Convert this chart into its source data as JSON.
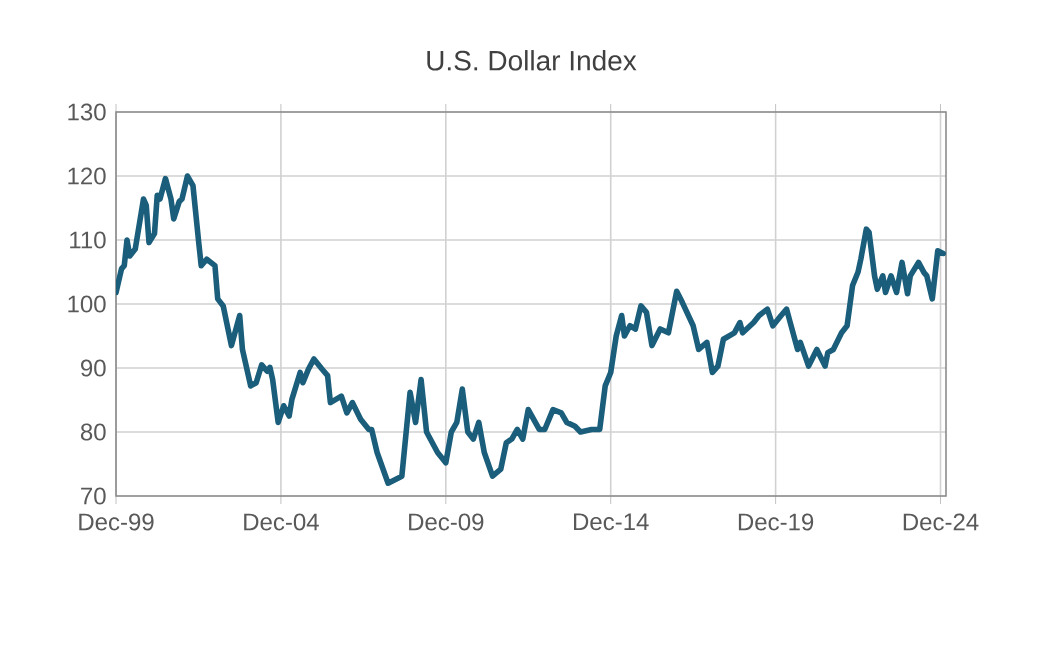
{
  "chart_data": {
    "type": "line",
    "title": "U.S. Dollar Index",
    "x": [
      "1999-12",
      "2000-02",
      "2000-03",
      "2000-04",
      "2000-05",
      "2000-07",
      "2000-09",
      "2000-10",
      "2000-11",
      "2000-12",
      "2001-02",
      "2001-03",
      "2001-04",
      "2001-06",
      "2001-08",
      "2001-09",
      "2001-11",
      "2001-12",
      "2002-02",
      "2002-04",
      "2002-06",
      "2002-07",
      "2002-09",
      "2002-12",
      "2003-01",
      "2003-03",
      "2003-06",
      "2003-09",
      "2003-10",
      "2004-01",
      "2004-03",
      "2004-05",
      "2004-07",
      "2004-08",
      "2004-09",
      "2004-11",
      "2005-01",
      "2005-03",
      "2005-04",
      "2005-07",
      "2005-08",
      "2005-10",
      "2005-12",
      "2006-03",
      "2006-05",
      "2006-06",
      "2006-10",
      "2006-12",
      "2007-02",
      "2007-05",
      "2007-08",
      "2007-09",
      "2007-11",
      "2008-03",
      "2008-08",
      "2008-11",
      "2009-01",
      "2009-03",
      "2009-05",
      "2009-09",
      "2009-12",
      "2010-02",
      "2010-04",
      "2010-06",
      "2010-08",
      "2010-10",
      "2010-12",
      "2011-02",
      "2011-05",
      "2011-08",
      "2011-10",
      "2011-12",
      "2012-02",
      "2012-04",
      "2012-06",
      "2012-10",
      "2012-12",
      "2013-03",
      "2013-06",
      "2013-08",
      "2013-11",
      "2014-01",
      "2014-05",
      "2014-08",
      "2014-10",
      "2014-12",
      "2015-02",
      "2015-04",
      "2015-05",
      "2015-07",
      "2015-09",
      "2015-11",
      "2016-01",
      "2016-03",
      "2016-06",
      "2016-09",
      "2016-12",
      "2017-02",
      "2017-06",
      "2017-08",
      "2017-11",
      "2018-01",
      "2018-03",
      "2018-05",
      "2018-09",
      "2018-11",
      "2018-12",
      "2019-04",
      "2019-06",
      "2019-09",
      "2019-11",
      "2020-02",
      "2020-04",
      "2020-05",
      "2020-08",
      "2020-09",
      "2020-12",
      "2021-03",
      "2021-06",
      "2021-07",
      "2021-09",
      "2021-12",
      "2022-02",
      "2022-04",
      "2022-06",
      "2022-07",
      "2022-09",
      "2022-10",
      "2022-12",
      "2023-01",
      "2023-03",
      "2023-04",
      "2023-06",
      "2023-08",
      "2023-10",
      "2023-12",
      "2024-01",
      "2024-04",
      "2024-06",
      "2024-07",
      "2024-09",
      "2024-11",
      "2025-01"
    ],
    "series": [
      {
        "color": "#1b5e7b",
        "values": [
          101.8,
          105.5,
          106,
          110,
          107.5,
          108.6,
          113.8,
          116.4,
          115.4,
          109.6,
          111,
          117,
          116.4,
          119.6,
          116.4,
          113.3,
          116,
          116.4,
          120,
          118.5,
          110,
          106,
          107,
          106,
          100.8,
          99.7,
          93.5,
          98.2,
          92.9,
          87.2,
          87.7,
          90.5,
          89.5,
          90.1,
          88.2,
          81.5,
          84.1,
          82.5,
          85.1,
          89.3,
          87.7,
          89.8,
          91.4,
          89.8,
          88.8,
          84.6,
          85.6,
          83,
          84.6,
          82,
          80.4,
          80.4,
          76.8,
          72,
          73.1,
          86.2,
          81.5,
          88.2,
          80,
          76.8,
          75.2,
          80,
          81.5,
          86.7,
          80,
          78.9,
          81.5,
          76.8,
          73.1,
          74.2,
          78.3,
          78.9,
          80.4,
          78.9,
          83.5,
          80.4,
          80.4,
          83.5,
          83,
          81.5,
          80.9,
          80,
          80.4,
          80.4,
          87.2,
          89.3,
          95,
          98.2,
          95,
          96.6,
          96.1,
          99.7,
          98.7,
          93.5,
          96.1,
          95.5,
          102,
          100.3,
          96.6,
          92.9,
          94,
          89.3,
          90.3,
          94.5,
          95.5,
          97.1,
          95.5,
          97.1,
          98.2,
          99.2,
          96.6,
          98.2,
          99.2,
          97.6,
          92.9,
          94,
          90.3,
          92.9,
          90.3,
          92.4,
          92.9,
          95.5,
          96.6,
          102.9,
          105,
          107,
          111.7,
          111.2,
          104.4,
          102.3,
          104.4,
          101.8,
          104.4,
          101.8,
          106.5,
          101.6,
          104.4,
          106.5,
          104.9,
          104.4,
          100.8,
          108.3,
          107.9
        ]
      }
    ],
    "xlim": [
      "1999-12",
      "2025-02"
    ],
    "xticks": [
      {
        "value": "1999-12",
        "label": "Dec-99"
      },
      {
        "value": "2004-12",
        "label": "Dec-04"
      },
      {
        "value": "2009-12",
        "label": "Dec-09"
      },
      {
        "value": "2014-12",
        "label": "Dec-14"
      },
      {
        "value": "2019-12",
        "label": "Dec-19"
      },
      {
        "value": "2024-12",
        "label": "Dec-24"
      }
    ],
    "ylim": [
      70,
      130
    ],
    "yticks": [
      70,
      80,
      90,
      100,
      110,
      120,
      130
    ],
    "grid": true,
    "marker": "none",
    "line_style": "solid"
  }
}
